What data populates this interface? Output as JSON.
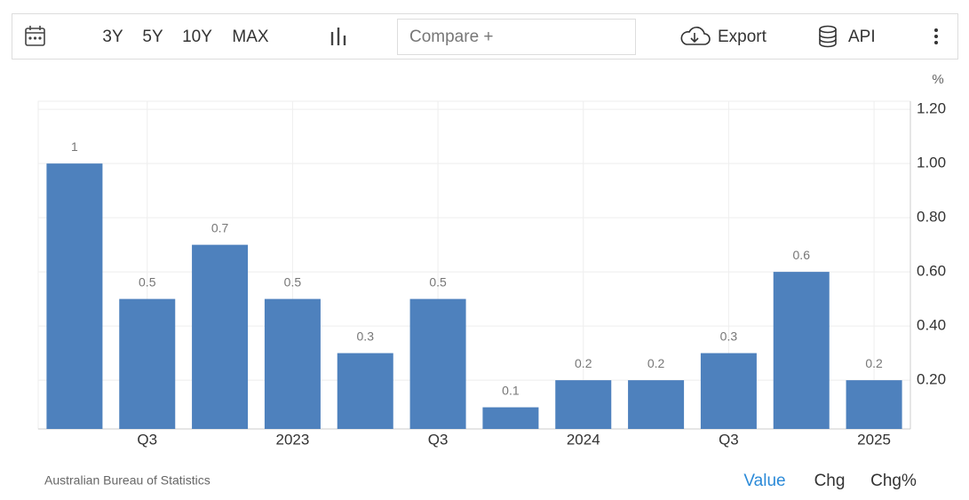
{
  "toolbar": {
    "ranges": [
      "3Y",
      "5Y",
      "10Y",
      "MAX"
    ],
    "compare": "Compare +",
    "export": "Export",
    "api": "API"
  },
  "unit": "%",
  "source": "Australian Bureau of Statistics",
  "tabs": [
    "Value",
    "Chg",
    "Chg%"
  ],
  "chart_data": {
    "type": "bar",
    "categories": [
      null,
      "Q3",
      null,
      "2023",
      null,
      "Q3",
      null,
      "2024",
      null,
      "Q3",
      null,
      "2025"
    ],
    "values": [
      1,
      0.5,
      0.7,
      0.5,
      0.3,
      0.5,
      0.1,
      0.2,
      0.2,
      0.3,
      0.6,
      0.2
    ],
    "color": "#4e81bd",
    "ylim": [
      0.02,
      1.23
    ],
    "yticks": [
      {
        "value": 0.2,
        "label": "0.20"
      },
      {
        "value": 0.4,
        "label": "0.40"
      },
      {
        "value": 0.6,
        "label": "0.60"
      },
      {
        "value": 0.8,
        "label": "0.80"
      },
      {
        "value": 1.0,
        "label": "1.00"
      },
      {
        "value": 1.2,
        "label": "1.20"
      }
    ],
    "grid": true
  }
}
